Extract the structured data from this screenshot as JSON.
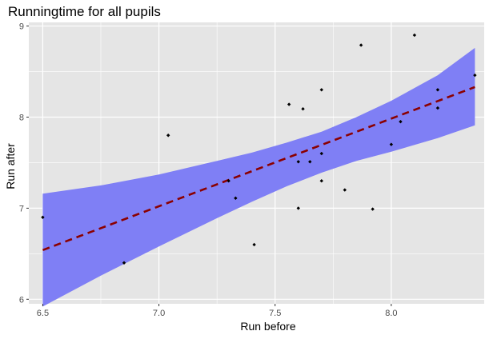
{
  "chart_data": {
    "type": "scatter",
    "title": "Runningtime for all pupils",
    "xlabel": "Run before",
    "ylabel": "Run after",
    "xlim": [
      6.44,
      8.4
    ],
    "ylim": [
      5.95,
      9.04
    ],
    "x_ticks": [
      6.5,
      7.0,
      7.5,
      8.0
    ],
    "x_tick_labels": [
      "6.5",
      "7.0",
      "7.5",
      "8.0"
    ],
    "y_ticks": [
      6,
      7,
      8,
      9
    ],
    "y_tick_labels": [
      "6",
      "7",
      "8",
      "9"
    ],
    "grid": true,
    "panel_background": "#e5e5e5",
    "gridline_color": "#ffffff",
    "points_color": "#000000",
    "fit_line_color": "#8b0000",
    "ribbon_color": "#7f7ff5",
    "points": [
      {
        "x": 6.5,
        "y": 6.9
      },
      {
        "x": 6.85,
        "y": 6.4
      },
      {
        "x": 7.04,
        "y": 7.8
      },
      {
        "x": 7.3,
        "y": 7.3
      },
      {
        "x": 7.33,
        "y": 7.11
      },
      {
        "x": 7.41,
        "y": 6.6
      },
      {
        "x": 7.56,
        "y": 8.14
      },
      {
        "x": 7.6,
        "y": 7.0
      },
      {
        "x": 7.6,
        "y": 7.51
      },
      {
        "x": 7.62,
        "y": 8.09
      },
      {
        "x": 7.65,
        "y": 7.51
      },
      {
        "x": 7.7,
        "y": 7.6
      },
      {
        "x": 7.7,
        "y": 7.3
      },
      {
        "x": 7.7,
        "y": 8.3
      },
      {
        "x": 7.8,
        "y": 7.2
      },
      {
        "x": 7.87,
        "y": 8.79
      },
      {
        "x": 7.92,
        "y": 6.99
      },
      {
        "x": 8.0,
        "y": 7.7
      },
      {
        "x": 8.04,
        "y": 7.95
      },
      {
        "x": 8.1,
        "y": 8.9
      },
      {
        "x": 8.2,
        "y": 8.3
      },
      {
        "x": 8.2,
        "y": 8.1
      },
      {
        "x": 8.36,
        "y": 8.46
      }
    ],
    "fit_line": [
      {
        "x": 6.5,
        "y": 6.54
      },
      {
        "x": 8.36,
        "y": 8.33
      }
    ],
    "confidence_band": [
      {
        "x": 6.5,
        "lower": 5.92,
        "upper": 7.16
      },
      {
        "x": 6.75,
        "lower": 6.26,
        "upper": 7.25
      },
      {
        "x": 7.0,
        "lower": 6.58,
        "upper": 7.37
      },
      {
        "x": 7.25,
        "lower": 6.89,
        "upper": 7.52
      },
      {
        "x": 7.4,
        "lower": 7.07,
        "upper": 7.61
      },
      {
        "x": 7.55,
        "lower": 7.24,
        "upper": 7.72
      },
      {
        "x": 7.7,
        "lower": 7.39,
        "upper": 7.84
      },
      {
        "x": 7.85,
        "lower": 7.52,
        "upper": 8.0
      },
      {
        "x": 8.0,
        "lower": 7.62,
        "upper": 8.18
      },
      {
        "x": 8.2,
        "lower": 7.77,
        "upper": 8.46
      },
      {
        "x": 8.36,
        "lower": 7.91,
        "upper": 8.76
      }
    ]
  }
}
